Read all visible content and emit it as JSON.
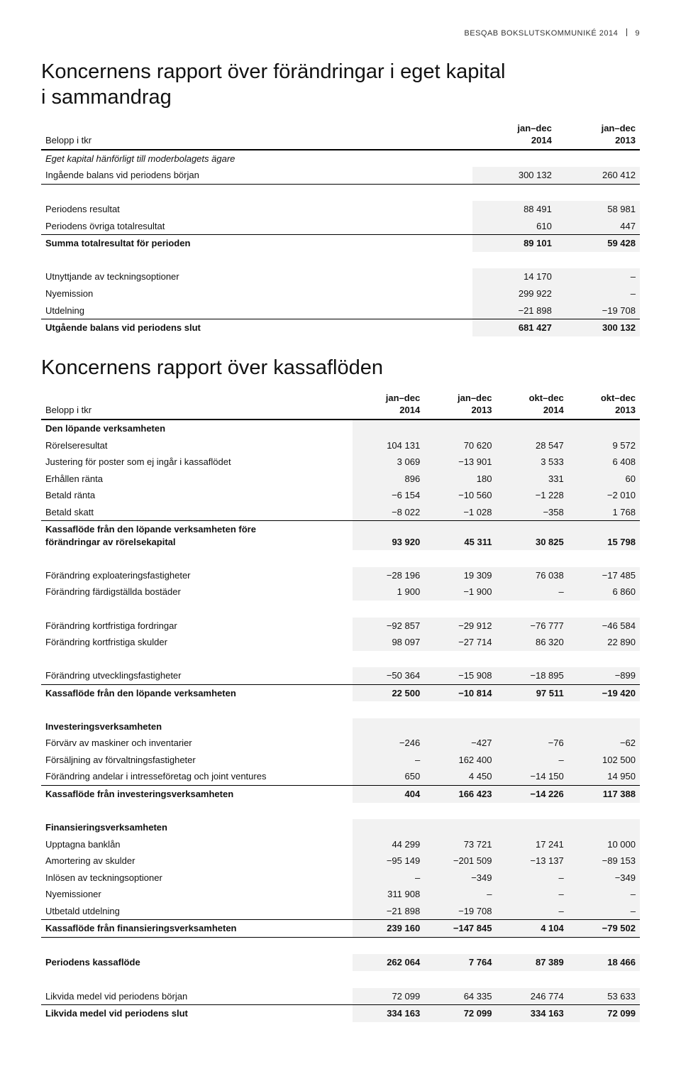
{
  "header": {
    "left": "BESQAB BOKSLUTSKOMMUNIKÉ 2014",
    "page": "9"
  },
  "equity": {
    "title_l1": "Koncernens rapport över förändringar i eget kapital",
    "title_l2": "i sammandrag",
    "belopp": "Belopp i tkr",
    "cols": [
      {
        "t1": "jan–dec",
        "t2": "2014"
      },
      {
        "t1": "jan–dec",
        "t2": "2013"
      }
    ],
    "rows": [
      {
        "label": "Eget kapital hänförligt till moderbolagets ägare",
        "v": [
          "",
          ""
        ],
        "italic": true
      },
      {
        "label": "Ingående balans vid periodens början",
        "v": [
          "300 132",
          "260 412"
        ],
        "shade": true,
        "lineBottom": true
      },
      {
        "spacer": true
      },
      {
        "label": "Periodens resultat",
        "v": [
          "88 491",
          "58 981"
        ],
        "shade": true
      },
      {
        "label": "Periodens övriga totalresultat",
        "v": [
          "610",
          "447"
        ],
        "shade": true,
        "lineBottom": true
      },
      {
        "label": "Summa totalresultat för perioden",
        "v": [
          "89 101",
          "59 428"
        ],
        "shade": true,
        "bold": true
      },
      {
        "spacer": true
      },
      {
        "label": "Utnyttjande av teckningsoptioner",
        "v": [
          "14 170",
          "–"
        ],
        "shade": true
      },
      {
        "label": "Nyemission",
        "v": [
          "299 922",
          "–"
        ],
        "shade": true
      },
      {
        "label": "Utdelning",
        "v": [
          "−21 898",
          "−19 708"
        ],
        "shade": true,
        "lineBottom": true
      },
      {
        "label": "Utgående balans vid periodens slut",
        "v": [
          "681 427",
          "300 132"
        ],
        "shade": true,
        "bold": true
      }
    ]
  },
  "cashflow": {
    "title": "Koncernens rapport över kassaflöden",
    "belopp": "Belopp i tkr",
    "cols": [
      {
        "t1": "jan–dec",
        "t2": "2014"
      },
      {
        "t1": "jan–dec",
        "t2": "2013"
      },
      {
        "t1": "okt–dec",
        "t2": "2014"
      },
      {
        "t1": "okt–dec",
        "t2": "2013"
      }
    ],
    "rows": [
      {
        "label": "Den löpande verksamheten",
        "v": [
          "",
          "",
          "",
          ""
        ],
        "bold": true,
        "shade": true
      },
      {
        "label": "Rörelseresultat",
        "v": [
          "104 131",
          "70 620",
          "28 547",
          "9 572"
        ],
        "shade": true
      },
      {
        "label": "Justering för poster som ej ingår i kassaflödet",
        "v": [
          "3 069",
          "−13 901",
          "3 533",
          "6 408"
        ],
        "shade": true
      },
      {
        "label": "Erhållen ränta",
        "v": [
          "896",
          "180",
          "331",
          "60"
        ],
        "shade": true
      },
      {
        "label": "Betald ränta",
        "v": [
          "−6 154",
          "−10 560",
          "−1 228",
          "−2 010"
        ],
        "shade": true
      },
      {
        "label": "Betald skatt",
        "v": [
          "−8 022",
          "−1 028",
          "−358",
          "1 768"
        ],
        "shade": true,
        "lineBottom": true
      },
      {
        "label": "Kassaflöde från den löpande verksamheten före\nförändringar av rörelsekapital",
        "v": [
          "93 920",
          "45 311",
          "30 825",
          "15 798"
        ],
        "shade": true,
        "bold": true,
        "multiline": true
      },
      {
        "spacer": true
      },
      {
        "label": "Förändring exploateringsfastigheter",
        "v": [
          "−28 196",
          "19 309",
          "76 038",
          "−17 485"
        ],
        "shade": true
      },
      {
        "label": "Förändring färdigställda bostäder",
        "v": [
          "1 900",
          "−1 900",
          "–",
          "6 860"
        ],
        "shade": true
      },
      {
        "spacer": true
      },
      {
        "label": "Förändring kortfristiga fordringar",
        "v": [
          "−92 857",
          "−29 912",
          "−76 777",
          "−46 584"
        ],
        "shade": true
      },
      {
        "label": "Förändring kortfristiga skulder",
        "v": [
          "98 097",
          "−27 714",
          "86 320",
          "22 890"
        ],
        "shade": true
      },
      {
        "spacer": true
      },
      {
        "label": "Förändring utvecklingsfastigheter",
        "v": [
          "−50 364",
          "−15 908",
          "−18 895",
          "−899"
        ],
        "shade": true,
        "lineBottom": true
      },
      {
        "label": "Kassaflöde från den löpande verksamheten",
        "v": [
          "22 500",
          "−10 814",
          "97 511",
          "−19 420"
        ],
        "shade": true,
        "bold": true
      },
      {
        "spacer": true
      },
      {
        "label": "Investeringsverksamheten",
        "v": [
          "",
          "",
          "",
          ""
        ],
        "bold": true,
        "shade": true
      },
      {
        "label": "Förvärv av maskiner och inventarier",
        "v": [
          "−246",
          "−427",
          "−76",
          "−62"
        ],
        "shade": true
      },
      {
        "label": "Försäljning av förvaltningsfastigheter",
        "v": [
          "–",
          "162 400",
          "–",
          "102 500"
        ],
        "shade": true
      },
      {
        "label": "Förändring andelar i intresseföretag och joint ventures",
        "v": [
          "650",
          "4 450",
          "−14 150",
          "14 950"
        ],
        "shade": true,
        "lineBottom": true
      },
      {
        "label": "Kassaflöde från investeringsverksamheten",
        "v": [
          "404",
          "166 423",
          "−14 226",
          "117 388"
        ],
        "shade": true,
        "bold": true
      },
      {
        "spacer": true
      },
      {
        "label": "Finansieringsverksamheten",
        "v": [
          "",
          "",
          "",
          ""
        ],
        "bold": true,
        "shade": true
      },
      {
        "label": "Upptagna banklån",
        "v": [
          "44 299",
          "73 721",
          "17 241",
          "10 000"
        ],
        "shade": true
      },
      {
        "label": "Amortering av skulder",
        "v": [
          "−95 149",
          "−201 509",
          "−13 137",
          "−89 153"
        ],
        "shade": true
      },
      {
        "label": "Inlösen av teckningsoptioner",
        "v": [
          "–",
          "−349",
          "–",
          "−349"
        ],
        "shade": true
      },
      {
        "label": "Nyemissioner",
        "v": [
          "311 908",
          "–",
          "–",
          "–"
        ],
        "shade": true
      },
      {
        "label": "Utbetald utdelning",
        "v": [
          "−21 898",
          "−19 708",
          "–",
          "–"
        ],
        "shade": true,
        "lineBottom": true
      },
      {
        "label": "Kassaflöde från finansieringsverksamheten",
        "v": [
          "239 160",
          "−147 845",
          "4 104",
          "−79 502"
        ],
        "shade": true,
        "bold": true,
        "lineBottom": true
      },
      {
        "spacer": true
      },
      {
        "label": "Periodens kassaflöde",
        "v": [
          "262 064",
          "7 764",
          "87 389",
          "18 466"
        ],
        "shade": true,
        "bold": true
      },
      {
        "spacer": true
      },
      {
        "label": "Likvida medel vid periodens början",
        "v": [
          "72 099",
          "64 335",
          "246 774",
          "53 633"
        ],
        "shade": true,
        "lineBottom": true
      },
      {
        "label": "Likvida medel vid periodens slut",
        "v": [
          "334 163",
          "72 099",
          "334 163",
          "72 099"
        ],
        "shade": true,
        "bold": true
      }
    ]
  }
}
